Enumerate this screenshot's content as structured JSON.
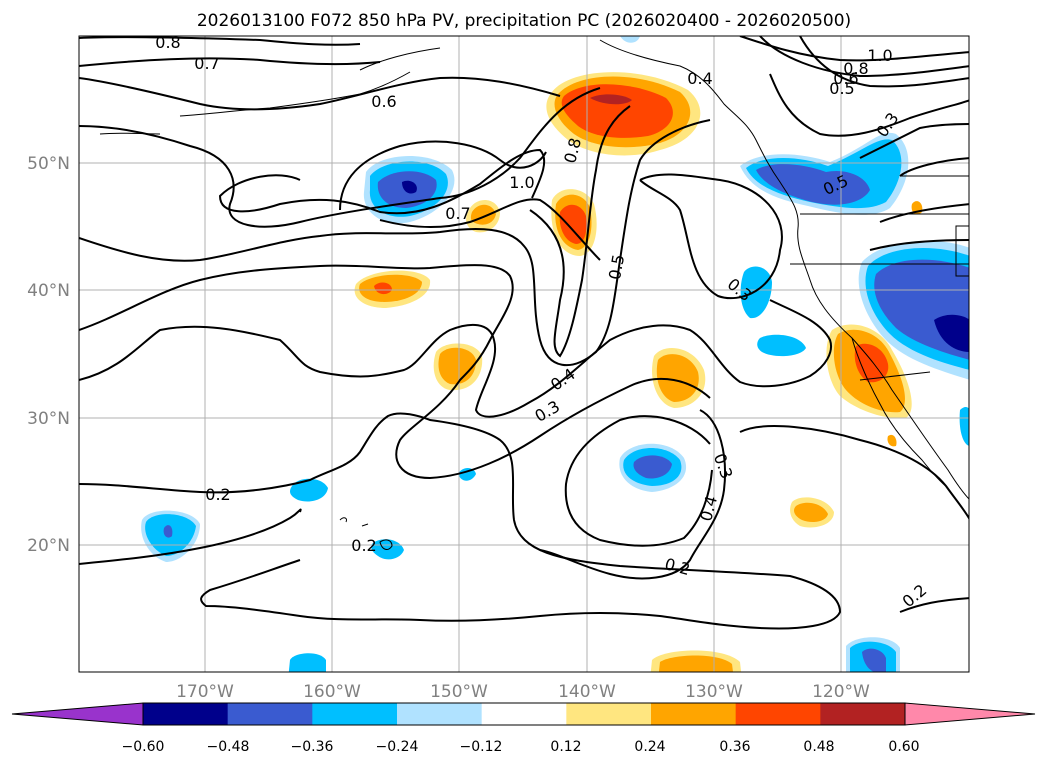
{
  "title": "2026013100 F072 850 hPa PV, precipitation PC (2026020400 - 2026020500)",
  "map": {
    "extent": {
      "lon": [
        -180,
        -110
      ],
      "lat": [
        10,
        60
      ]
    },
    "lon_ticks": [
      {
        "value": -170,
        "label": "170°W"
      },
      {
        "value": -160,
        "label": "160°W"
      },
      {
        "value": -150,
        "label": "150°W"
      },
      {
        "value": -140,
        "label": "140°W"
      },
      {
        "value": -130,
        "label": "130°W"
      },
      {
        "value": -120,
        "label": "120°W"
      }
    ],
    "lat_ticks": [
      {
        "value": 20,
        "label": "20°N"
      },
      {
        "value": 30,
        "label": "30°N"
      },
      {
        "value": 40,
        "label": "40°N"
      },
      {
        "value": 50,
        "label": "50°N"
      }
    ],
    "contour_labels": [
      "0.8",
      "0.7",
      "0.6",
      "1.0",
      "0.7",
      "0.8",
      "0.5",
      "0.4",
      "0.3",
      "0.3",
      "0.3",
      "0.4",
      "0.2",
      "0.2",
      "0.2",
      "0.2",
      "1.0",
      "0.8",
      "0.6",
      "0.5",
      "0.3",
      "0.5",
      "0.4"
    ]
  },
  "colorbar": {
    "ticks": [
      "−0.60",
      "−0.48",
      "−0.36",
      "−0.24",
      "−0.12",
      "0.12",
      "0.24",
      "0.36",
      "0.48",
      "0.60"
    ],
    "colors": [
      "#9933cc",
      "#00008b",
      "#3a5bd0",
      "#00bfff",
      "#b0e2ff",
      "#ffffff",
      "#ffe680",
      "#ffa500",
      "#ff4500",
      "#b22222",
      "#ff88aa"
    ]
  }
}
